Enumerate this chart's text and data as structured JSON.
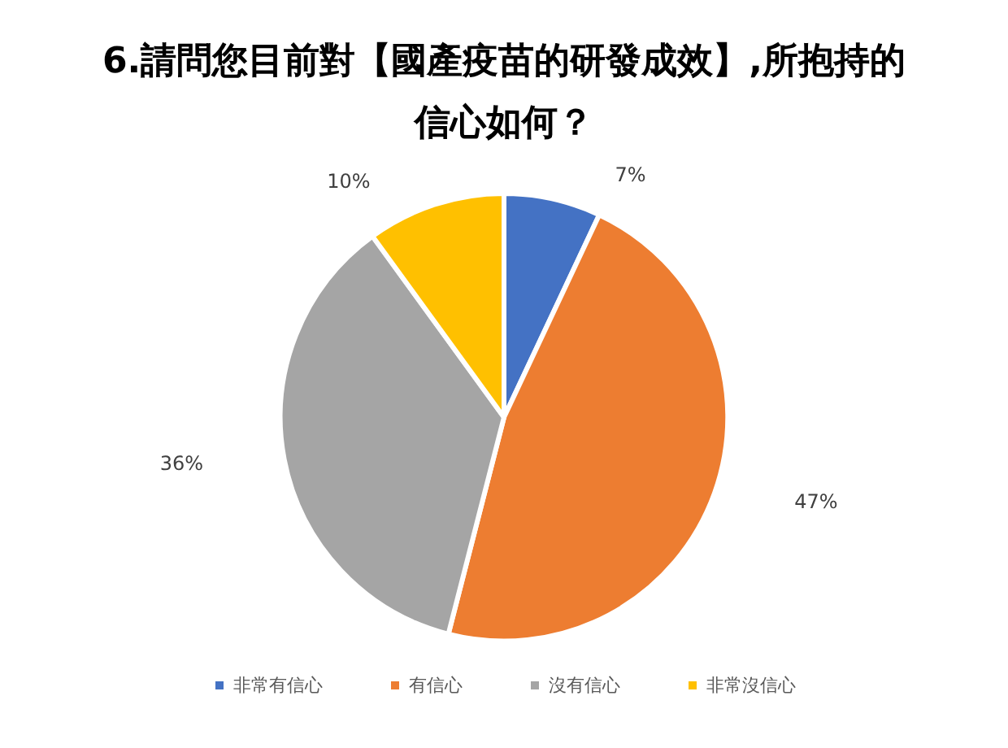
{
  "chart_data": {
    "type": "pie",
    "title": "6.請問您目前對【國產疫苗的研發成效】,所抱持的信心如何？",
    "categories": [
      "非常有信心",
      "有信心",
      "沒有信心",
      "非常沒信心"
    ],
    "values": [
      7,
      47,
      36,
      10
    ],
    "colors": [
      "#4472c4",
      "#ed7d31",
      "#a5a5a5",
      "#ffc000"
    ],
    "value_labels": [
      "7%",
      "47%",
      "36%",
      "10%"
    ],
    "legend": "bottom"
  }
}
